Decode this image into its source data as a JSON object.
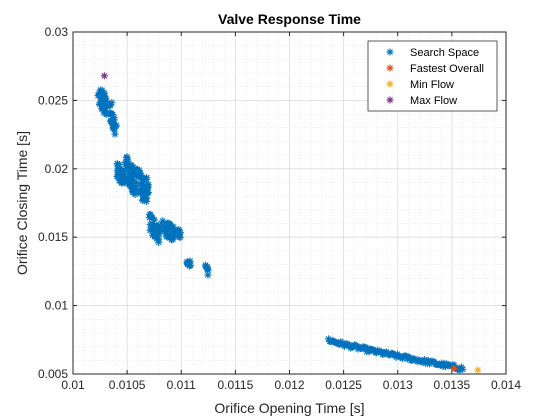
{
  "chart_data": {
    "type": "scatter",
    "title": "Valve Response Time",
    "xlabel": "Orifice Opening Time [s]",
    "ylabel": "Orifice Closing Time [s]",
    "xlim": [
      0.01,
      0.014
    ],
    "ylim": [
      0.005,
      0.03
    ],
    "x_ticks": [
      0.01,
      0.0105,
      0.011,
      0.0115,
      0.012,
      0.0125,
      0.013,
      0.0135,
      0.014
    ],
    "x_tick_labels": [
      "0.01",
      "0.0105",
      "0.011",
      "0.0115",
      "0.012",
      "0.0125",
      "0.013",
      "0.0135",
      "0.014"
    ],
    "y_ticks": [
      0.005,
      0.01,
      0.015,
      0.02,
      0.025,
      0.03
    ],
    "y_tick_labels": [
      "0.005",
      "0.01",
      "0.015",
      "0.02",
      "0.025",
      "0.03"
    ],
    "grid": true,
    "minor_grid": true,
    "legend_position": "top-right",
    "marker": "asterisk",
    "series": [
      {
        "name": "Search Space",
        "color": "#0072BD",
        "clusters": [
          {
            "x_range": [
              0.01023,
              0.01032
            ],
            "y_range": [
              0.0237,
              0.0262
            ],
            "count": 40
          },
          {
            "x_range": [
              0.01034,
              0.0104
            ],
            "y_range": [
              0.0223,
              0.0252
            ],
            "count": 25
          },
          {
            "x_range": [
              0.0104,
              0.01048
            ],
            "y_range": [
              0.0186,
              0.0206
            ],
            "count": 30
          },
          {
            "x_range": [
              0.01048,
              0.01058
            ],
            "y_range": [
              0.0179,
              0.0212
            ],
            "count": 45
          },
          {
            "x_range": [
              0.01058,
              0.01068
            ],
            "y_range": [
              0.0172,
              0.0203
            ],
            "count": 45
          },
          {
            "x_range": [
              0.01068,
              0.0107
            ],
            "y_range": [
              0.0178,
              0.0195
            ],
            "count": 10
          },
          {
            "x_range": [
              0.0107,
              0.0108
            ],
            "y_range": [
              0.0145,
              0.0168
            ],
            "count": 35
          },
          {
            "x_range": [
              0.01082,
              0.01095
            ],
            "y_range": [
              0.0145,
              0.0164
            ],
            "count": 30
          },
          {
            "x_range": [
              0.01095,
              0.011
            ],
            "y_range": [
              0.0148,
              0.0158
            ],
            "count": 8
          },
          {
            "x_range": [
              0.01105,
              0.01109
            ],
            "y_range": [
              0.0127,
              0.0136
            ],
            "count": 8
          },
          {
            "x_range": [
              0.01122,
              0.01125
            ],
            "y_range": [
              0.0122,
              0.0131
            ],
            "count": 6
          }
        ],
        "curve": {
          "x_range": [
            0.01236,
            0.0136
          ],
          "y_start": 0.0075,
          "y_end": 0.0054,
          "count": 110
        }
      },
      {
        "name": "Fastest Overall",
        "color": "#D95319",
        "x": [
          0.01352
        ],
        "y": [
          0.0054
        ]
      },
      {
        "name": "Min Flow",
        "color": "#EDB120",
        "x": [
          0.01374
        ],
        "y": [
          0.0053
        ]
      },
      {
        "name": "Max Flow",
        "color": "#7E2F8E",
        "x": [
          0.01029
        ],
        "y": [
          0.0268
        ]
      }
    ]
  }
}
